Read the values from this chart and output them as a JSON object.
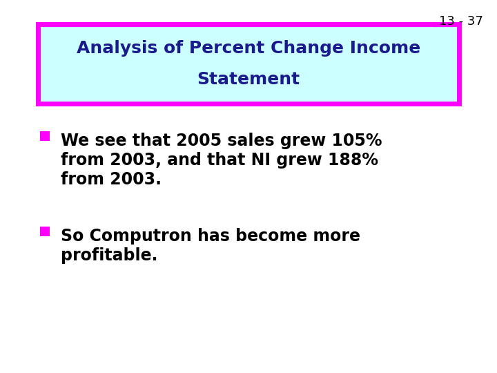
{
  "slide_number": "13 - 37",
  "title_line1": "Analysis of Percent Change Income",
  "title_line2": "Statement",
  "title_text_color": "#1a1a8c",
  "title_bg_color": "#ccffff",
  "title_border_color": "#ff00ff",
  "bullet_color": "#ff00ff",
  "bullet1_line1": "We see that 2005 sales grew 105%",
  "bullet1_line2": "from 2003, and that NI grew 188%",
  "bullet1_line3": "from 2003.",
  "bullet2_line1": "So Computron has become more",
  "bullet2_line2": "profitable.",
  "body_text_color": "#000000",
  "background_color": "#ffffff",
  "slide_num_color": "#000000",
  "title_fontsize": 18,
  "body_fontsize": 17,
  "slide_num_fontsize": 13
}
